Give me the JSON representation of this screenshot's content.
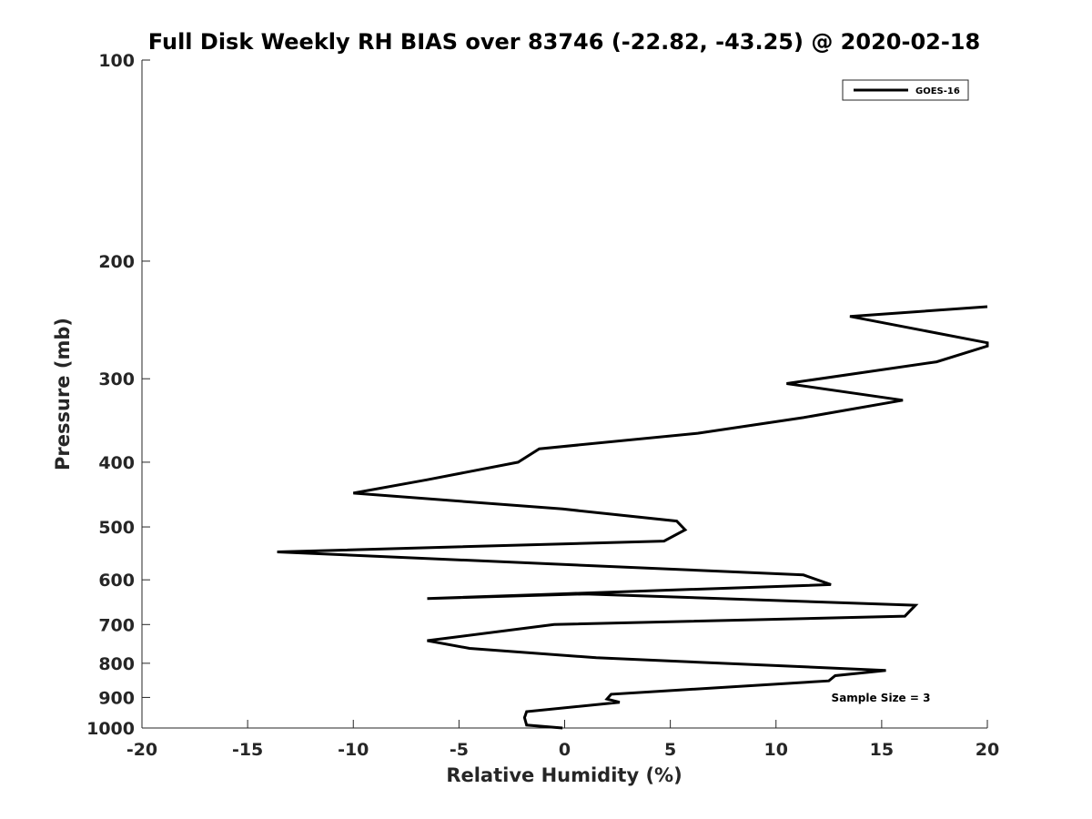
{
  "chart_data": {
    "type": "line",
    "title": "Full Disk Weekly RH BIAS over 83746 (-22.82, -43.25) @ 2020-02-18",
    "xlabel": "Relative Humidity (%)",
    "ylabel": "Pressure (mb)",
    "xlim": [
      -20,
      20
    ],
    "ylim": [
      100,
      1000
    ],
    "y_scale": "log",
    "y_reversed": true,
    "x_ticks": [
      "-20",
      "-15",
      "-10",
      "-5",
      "0",
      "5",
      "10",
      "15",
      "20"
    ],
    "y_ticks": [
      "100",
      "200",
      "300",
      "400",
      "500",
      "600",
      "700",
      "800",
      "900",
      "1000"
    ],
    "legend_position": "top-right",
    "grid": false,
    "annotation": "Sample Size = 3",
    "series": [
      {
        "name": "GOES-16",
        "color": "#000000",
        "x": [
          -0.1,
          -1.8,
          -1.9,
          -1.8,
          2.6,
          2.0,
          2.2,
          12.5,
          12.8,
          15.2,
          1.5,
          -4.5,
          -6.5,
          -0.5,
          16.1,
          16.6,
          1.0,
          -6.5,
          -0.3,
          12.6,
          11.3,
          -13.6,
          4.7,
          5.7,
          5.3,
          -0.1,
          -10.0,
          -6.5,
          -2.2,
          -1.2,
          6.3,
          11.3,
          16.0,
          10.5,
          17.6,
          20.0,
          20.0,
          13.5,
          20.0
        ],
        "y": [
          1000,
          990,
          965,
          945,
          915,
          905,
          890,
          850,
          835,
          820,
          785,
          760,
          740,
          700,
          680,
          655,
          630,
          640,
          630,
          610,
          590,
          545,
          525,
          505,
          490,
          470,
          445,
          425,
          400,
          382,
          362,
          343,
          323,
          305,
          283,
          268,
          265,
          242,
          234
        ]
      }
    ]
  }
}
